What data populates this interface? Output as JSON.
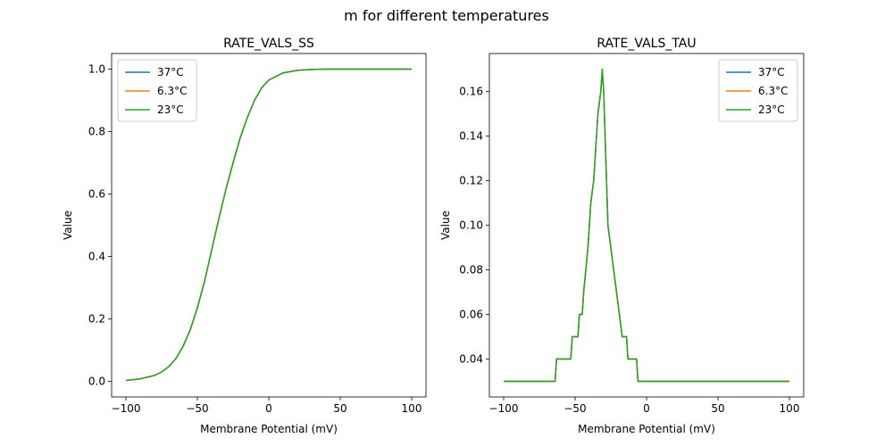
{
  "figure": {
    "suptitle": "m for different temperatures"
  },
  "colors": {
    "series": [
      "#1f77b4",
      "#ff7f0e",
      "#2ca02c"
    ]
  },
  "chart_data": [
    {
      "type": "line",
      "title": "RATE_VALS_SS",
      "xlabel": "Membrane Potential (mV)",
      "ylabel": "Value",
      "xlim": [
        -110,
        110
      ],
      "ylim": [
        -0.05,
        1.05
      ],
      "xticks": [
        -100,
        -50,
        0,
        50,
        100
      ],
      "yticks": [
        0.0,
        0.2,
        0.4,
        0.6,
        0.8,
        1.0
      ],
      "xtick_labels": [
        "−100",
        "−50",
        "0",
        "50",
        "100"
      ],
      "ytick_labels": [
        "0.0",
        "0.2",
        "0.4",
        "0.6",
        "0.8",
        "1.0"
      ],
      "legend_position": "upper-left",
      "grid": false,
      "series": [
        {
          "name": "37°C",
          "x": [
            -100,
            -90,
            -80,
            -75,
            -70,
            -65,
            -60,
            -55,
            -50,
            -45,
            -40,
            -35,
            -30,
            -25,
            -20,
            -15,
            -10,
            -5,
            0,
            10,
            20,
            30,
            40,
            60,
            80,
            100
          ],
          "y": [
            0.003,
            0.008,
            0.019,
            0.03,
            0.047,
            0.073,
            0.112,
            0.165,
            0.235,
            0.32,
            0.42,
            0.52,
            0.615,
            0.7,
            0.78,
            0.845,
            0.9,
            0.94,
            0.965,
            0.988,
            0.996,
            0.999,
            1.0,
            1.0,
            1.0,
            1.0
          ]
        },
        {
          "name": "6.3°C",
          "x": [
            -100,
            -90,
            -80,
            -75,
            -70,
            -65,
            -60,
            -55,
            -50,
            -45,
            -40,
            -35,
            -30,
            -25,
            -20,
            -15,
            -10,
            -5,
            0,
            10,
            20,
            30,
            40,
            60,
            80,
            100
          ],
          "y": [
            0.003,
            0.008,
            0.019,
            0.03,
            0.047,
            0.073,
            0.112,
            0.165,
            0.235,
            0.32,
            0.42,
            0.52,
            0.615,
            0.7,
            0.78,
            0.845,
            0.9,
            0.94,
            0.965,
            0.988,
            0.996,
            0.999,
            1.0,
            1.0,
            1.0,
            1.0
          ]
        },
        {
          "name": "23°C",
          "x": [
            -100,
            -90,
            -80,
            -75,
            -70,
            -65,
            -60,
            -55,
            -50,
            -45,
            -40,
            -35,
            -30,
            -25,
            -20,
            -15,
            -10,
            -5,
            0,
            10,
            20,
            30,
            40,
            60,
            80,
            100
          ],
          "y": [
            0.003,
            0.008,
            0.019,
            0.03,
            0.047,
            0.073,
            0.112,
            0.165,
            0.235,
            0.32,
            0.42,
            0.52,
            0.615,
            0.7,
            0.78,
            0.845,
            0.9,
            0.94,
            0.965,
            0.988,
            0.996,
            0.999,
            1.0,
            1.0,
            1.0,
            1.0
          ]
        }
      ]
    },
    {
      "type": "line",
      "title": "RATE_VALS_TAU",
      "xlabel": "Membrane Potential (mV)",
      "ylabel": "Value",
      "xlim": [
        -110,
        110
      ],
      "ylim": [
        0.023,
        0.177
      ],
      "xticks": [
        -100,
        -50,
        0,
        50,
        100
      ],
      "yticks": [
        0.04,
        0.06,
        0.08,
        0.1,
        0.12,
        0.14,
        0.16
      ],
      "xtick_labels": [
        "−100",
        "−50",
        "0",
        "50",
        "100"
      ],
      "ytick_labels": [
        "0.04",
        "0.06",
        "0.08",
        "0.10",
        "0.12",
        "0.14",
        "0.16"
      ],
      "legend_position": "upper-right",
      "grid": false,
      "series": [
        {
          "name": "37°C",
          "x": [
            -100,
            -64,
            -63,
            -53,
            -52,
            -48,
            -47,
            -45,
            -44,
            -41,
            -39,
            -37,
            -35,
            -34,
            -32,
            -31,
            -30,
            -29,
            -27,
            -25,
            -23,
            -21,
            -17,
            -16,
            -14,
            -13,
            -12,
            -7,
            -6,
            0,
            100
          ],
          "y": [
            0.03,
            0.03,
            0.04,
            0.04,
            0.05,
            0.05,
            0.06,
            0.06,
            0.07,
            0.09,
            0.11,
            0.12,
            0.14,
            0.15,
            0.16,
            0.17,
            0.16,
            0.14,
            0.1,
            0.09,
            0.08,
            0.07,
            0.05,
            0.05,
            0.05,
            0.04,
            0.04,
            0.04,
            0.03,
            0.03,
            0.03
          ]
        },
        {
          "name": "6.3°C",
          "x": [
            -100,
            -64,
            -63,
            -53,
            -52,
            -48,
            -47,
            -45,
            -44,
            -41,
            -39,
            -37,
            -35,
            -34,
            -32,
            -31,
            -30,
            -29,
            -27,
            -25,
            -23,
            -21,
            -17,
            -16,
            -14,
            -13,
            -12,
            -7,
            -6,
            0,
            100
          ],
          "y": [
            0.03,
            0.03,
            0.04,
            0.04,
            0.05,
            0.05,
            0.06,
            0.06,
            0.07,
            0.09,
            0.11,
            0.12,
            0.14,
            0.15,
            0.16,
            0.17,
            0.16,
            0.14,
            0.1,
            0.09,
            0.08,
            0.07,
            0.05,
            0.05,
            0.05,
            0.04,
            0.04,
            0.04,
            0.03,
            0.03,
            0.03
          ]
        },
        {
          "name": "23°C",
          "x": [
            -100,
            -64,
            -63,
            -53,
            -52,
            -48,
            -47,
            -45,
            -44,
            -41,
            -39,
            -37,
            -35,
            -34,
            -32,
            -31,
            -30,
            -29,
            -27,
            -25,
            -23,
            -21,
            -17,
            -16,
            -14,
            -13,
            -12,
            -7,
            -6,
            0,
            100
          ],
          "y": [
            0.03,
            0.03,
            0.04,
            0.04,
            0.05,
            0.05,
            0.06,
            0.06,
            0.07,
            0.09,
            0.11,
            0.12,
            0.14,
            0.15,
            0.16,
            0.17,
            0.16,
            0.14,
            0.1,
            0.09,
            0.08,
            0.07,
            0.05,
            0.05,
            0.05,
            0.04,
            0.04,
            0.04,
            0.03,
            0.03,
            0.03
          ]
        }
      ]
    }
  ]
}
